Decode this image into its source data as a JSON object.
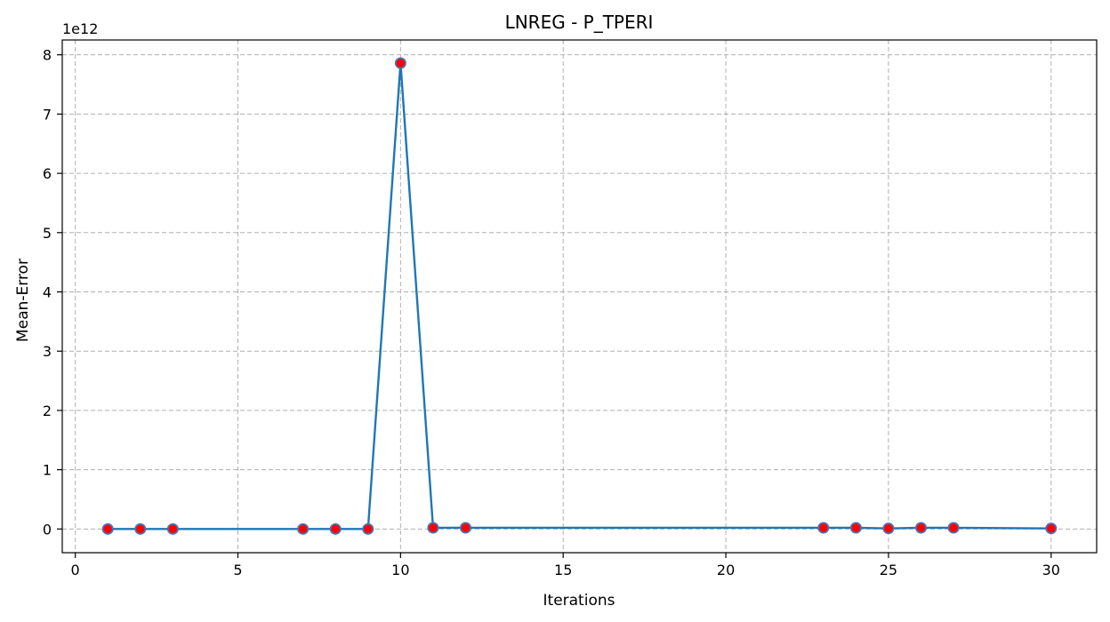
{
  "chart_data": {
    "type": "line",
    "title": "LNREG - P_TPERI",
    "xlabel": "Iterations",
    "ylabel": "Mean-Error",
    "y_offset_label": "1e12",
    "xlim": [
      -0.4,
      31.4
    ],
    "ylim": [
      -0.4,
      8.25
    ],
    "xticks": [
      0,
      5,
      10,
      15,
      20,
      25,
      30
    ],
    "yticks": [
      0,
      1,
      2,
      3,
      4,
      5,
      6,
      7,
      8
    ],
    "grid": true,
    "line_color": "#1f77b4",
    "marker_face_color": "#ff0000",
    "marker_edge_color": "#4c72b0",
    "series": [
      {
        "x": [
          1,
          2,
          3,
          7,
          8,
          9,
          10,
          11,
          12,
          23,
          24,
          25,
          26,
          27,
          30
        ],
        "y": [
          0.0,
          0.0,
          0.0,
          0.0,
          0.0,
          0.0,
          7.86,
          0.02,
          0.02,
          0.02,
          0.02,
          0.01,
          0.02,
          0.02,
          0.01
        ]
      }
    ]
  }
}
